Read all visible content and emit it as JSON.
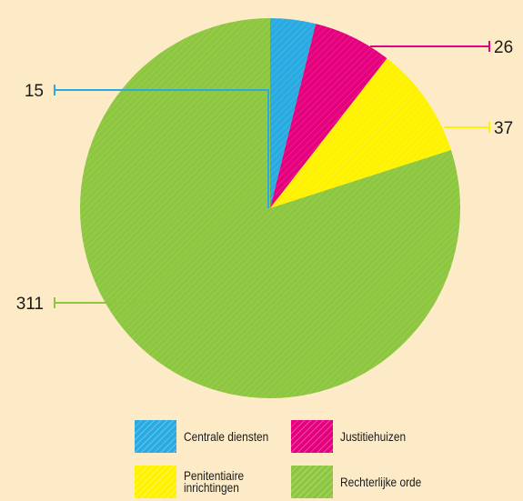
{
  "chart_data": {
    "type": "pie",
    "categories": [
      "Centrale diensten",
      "Justitiehuizen",
      "Penitentiaire inrichtingen",
      "Rechterlijke orde"
    ],
    "values": [
      15,
      26,
      37,
      311
    ],
    "value_labels": [
      "15",
      "26",
      "37",
      "311"
    ],
    "colors": [
      "#29abe2",
      "#e5007e",
      "#fff200",
      "#8dc63f"
    ],
    "start_angle_deg": 0,
    "direction": "clockwise",
    "legend_position": "bottom"
  },
  "legend": {
    "items": [
      {
        "label": "Centrale diensten",
        "color": "#29abe2"
      },
      {
        "label": "Justitiehuizen",
        "color": "#e5007e"
      },
      {
        "label": "Penitentiaire\ninrichtingen",
        "color": "#fff200"
      },
      {
        "label": "Rechterlijke orde",
        "color": "#8dc63f"
      }
    ]
  }
}
